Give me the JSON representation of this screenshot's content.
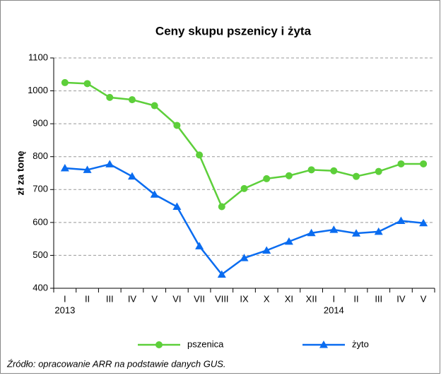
{
  "chart_data": {
    "type": "line",
    "title": "Ceny skupu pszenicy i żyta",
    "y_label": "zł za tonę",
    "categories": [
      "I",
      "II",
      "III",
      "IV",
      "V",
      "VI",
      "VII",
      "VIII",
      "IX",
      "X",
      "XI",
      "XII",
      "I",
      "II",
      "III",
      "IV",
      "V"
    ],
    "category_years": [
      "2013",
      null,
      null,
      null,
      null,
      null,
      null,
      null,
      null,
      null,
      null,
      null,
      "2014",
      null,
      null,
      null,
      null
    ],
    "series": [
      {
        "name": "pszenica",
        "color": "#5dcf3a",
        "marker": "circle",
        "values": [
          1025,
          1022,
          980,
          973,
          955,
          895,
          805,
          648,
          703,
          733,
          742,
          760,
          757,
          740,
          755,
          778,
          778
        ]
      },
      {
        "name": "żyto",
        "color": "#0a6cf0",
        "marker": "triangle",
        "values": [
          765,
          760,
          777,
          740,
          685,
          648,
          528,
          442,
          492,
          515,
          542,
          568,
          578,
          567,
          572,
          605,
          598
        ]
      }
    ],
    "ylim": [
      400,
      1100
    ],
    "yticks": [
      400,
      500,
      600,
      700,
      800,
      900,
      1000,
      1100
    ],
    "grid": true,
    "source": "Źródło: opracowanie ARR na podstawie danych GUS."
  }
}
